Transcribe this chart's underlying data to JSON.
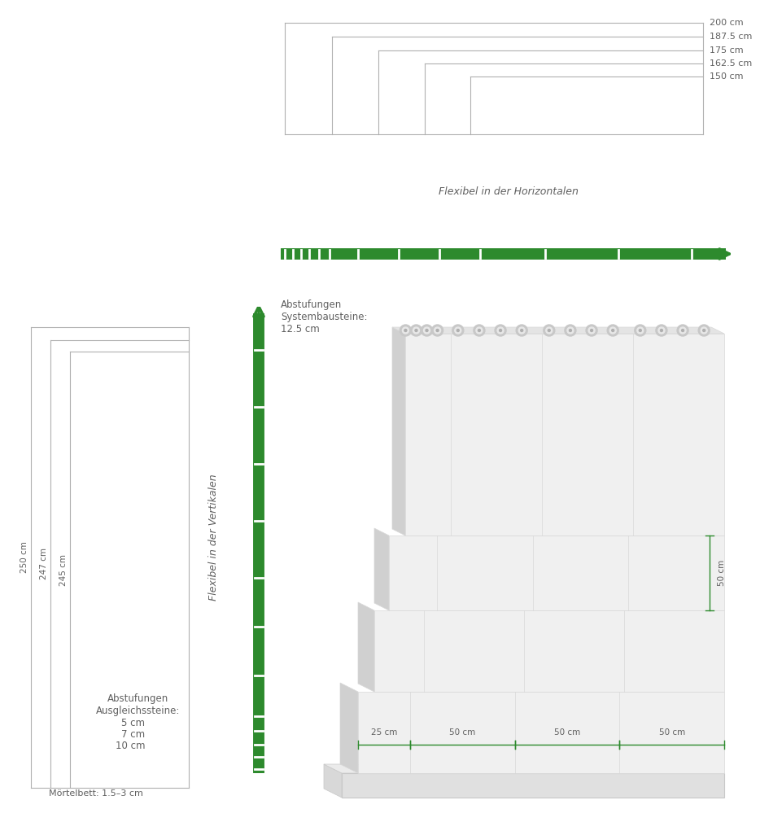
{
  "bg_color": "#ffffff",
  "line_color": "#b0b0b0",
  "green_color": "#2d8a2d",
  "text_color": "#606060",
  "brick_face_color": "#f0f0f0",
  "brick_edge_color": "#d8d8d8",
  "brick_side_color": "#d0d0d0",
  "brick_top_color": "#e4e4e4",
  "horizontal_labels": [
    "200 cm",
    "187.5 cm",
    "175 cm",
    "162.5 cm",
    "150 cm"
  ],
  "vertical_labels": [
    "250 cm",
    "247 cm",
    "245 cm"
  ],
  "width_labels": [
    "25 cm",
    "50 cm",
    "50 cm",
    "50 cm"
  ],
  "height_label": "50 cm",
  "flexibel_horizontal": "Flexibel in der Horizontalen",
  "flexibel_vertikal": "Flexibel in der Vertikalen",
  "abstufungen_system_line1": "Abstufungen",
  "abstufungen_system_line2": "Systembausteine:",
  "abstufungen_system_line3": "12.5 cm",
  "abstufungen_ausgleich_line1": "Abstufungen",
  "abstufungen_ausgleich_line2": "Ausgleichssteine:",
  "ausgleich_vals": [
    "5 cm",
    "7 cm",
    "10 cm"
  ],
  "mortelbett": "Mörtelbett: 1.5–3 cm"
}
